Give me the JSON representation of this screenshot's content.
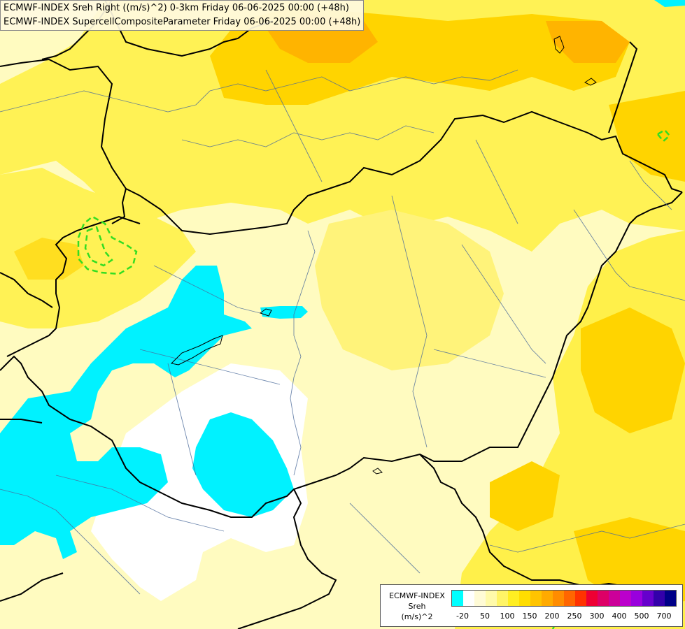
{
  "titles": {
    "line1": "ECMWF-INDEX Sreh Right ((m/s)^2) 0-3km Friday 06-06-2025 00:00 (+48h)",
    "line2": "ECMWF-INDEX SupercellCompositeParameter Friday 06-06-2025 00:00 (+48h)"
  },
  "legend": {
    "source": "ECMWF-INDEX",
    "parameter": "Sreh",
    "unit": "(m/s)^2",
    "colors": [
      "#00ffff",
      "#ffffff",
      "#fffbd6",
      "#fffaaa",
      "#fff466",
      "#ffee22",
      "#ffdd00",
      "#ffc400",
      "#ffaa00",
      "#ff8c00",
      "#ff6600",
      "#ff3300",
      "#ee0033",
      "#dd0066",
      "#cc0099",
      "#bb00cc",
      "#9900dd",
      "#6600cc",
      "#3300aa",
      "#000088"
    ],
    "ticks": [
      "-20",
      "50",
      "100",
      "150",
      "200",
      "250",
      "300",
      "400",
      "500",
      "700"
    ]
  }
}
